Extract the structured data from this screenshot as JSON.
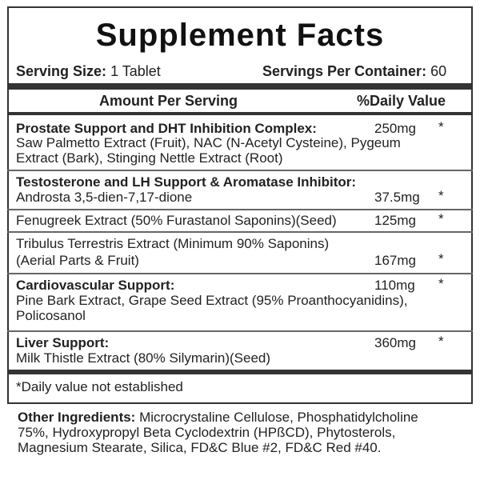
{
  "title": "Supplement Facts",
  "serving_size_label": "Serving Size:",
  "serving_size_value": "1 Tablet",
  "servings_label": "Servings Per Container:",
  "servings_value": "60",
  "header": {
    "amount": "Amount Per Serving",
    "dv": "%Daily Value"
  },
  "rows": [
    {
      "name": "Prostate Support and DHT Inhibition Complex:",
      "amount": "250mg",
      "dv": "*",
      "lines": [
        "Saw Palmetto Extract (Fruit), NAC (N-Acetyl Cysteine), Pygeum",
        "Extract (Bark), Stinging Nettle Extract (Root)"
      ]
    },
    {
      "name": "Testosterone and LH Support & Aromatase Inhibitor:",
      "lines": [
        "Androsta 3,5-dien-7,17-dione"
      ],
      "amount": "37.5mg",
      "dv": "*"
    },
    {
      "lines": [
        "Fenugreek Extract (50% Furastanol Saponins)(Seed)"
      ],
      "amount": "125mg",
      "dv": "*"
    },
    {
      "lines": [
        "Tribulus Terrestris Extract (Minimum 90% Saponins)",
        "(Aerial Parts & Fruit)"
      ],
      "amount": "167mg",
      "dv": "*"
    },
    {
      "name": "Cardiovascular Support:",
      "amount": "110mg",
      "dv": "*",
      "lines": [
        "Pine Bark Extract, Grape Seed Extract (95% Proanthocyanidins),",
        "Policosanol"
      ]
    },
    {
      "name": "Liver Support:",
      "amount": "360mg",
      "dv": "*",
      "lines": [
        "Milk Thistle Extract (80% Silymarin)(Seed)"
      ]
    }
  ],
  "footnote": "*Daily value not established",
  "other": {
    "label": "Other Ingredients:",
    "lines": [
      " Microcrystaline Cellulose, Phosphatidylcholine",
      "75%, Hydroxypropyl  Beta Cyclodextrin (HPßCD), Phytosterols,",
      "Magnesium Stearate, Silica, FD&C Blue #2, FD&C Red #40."
    ]
  }
}
